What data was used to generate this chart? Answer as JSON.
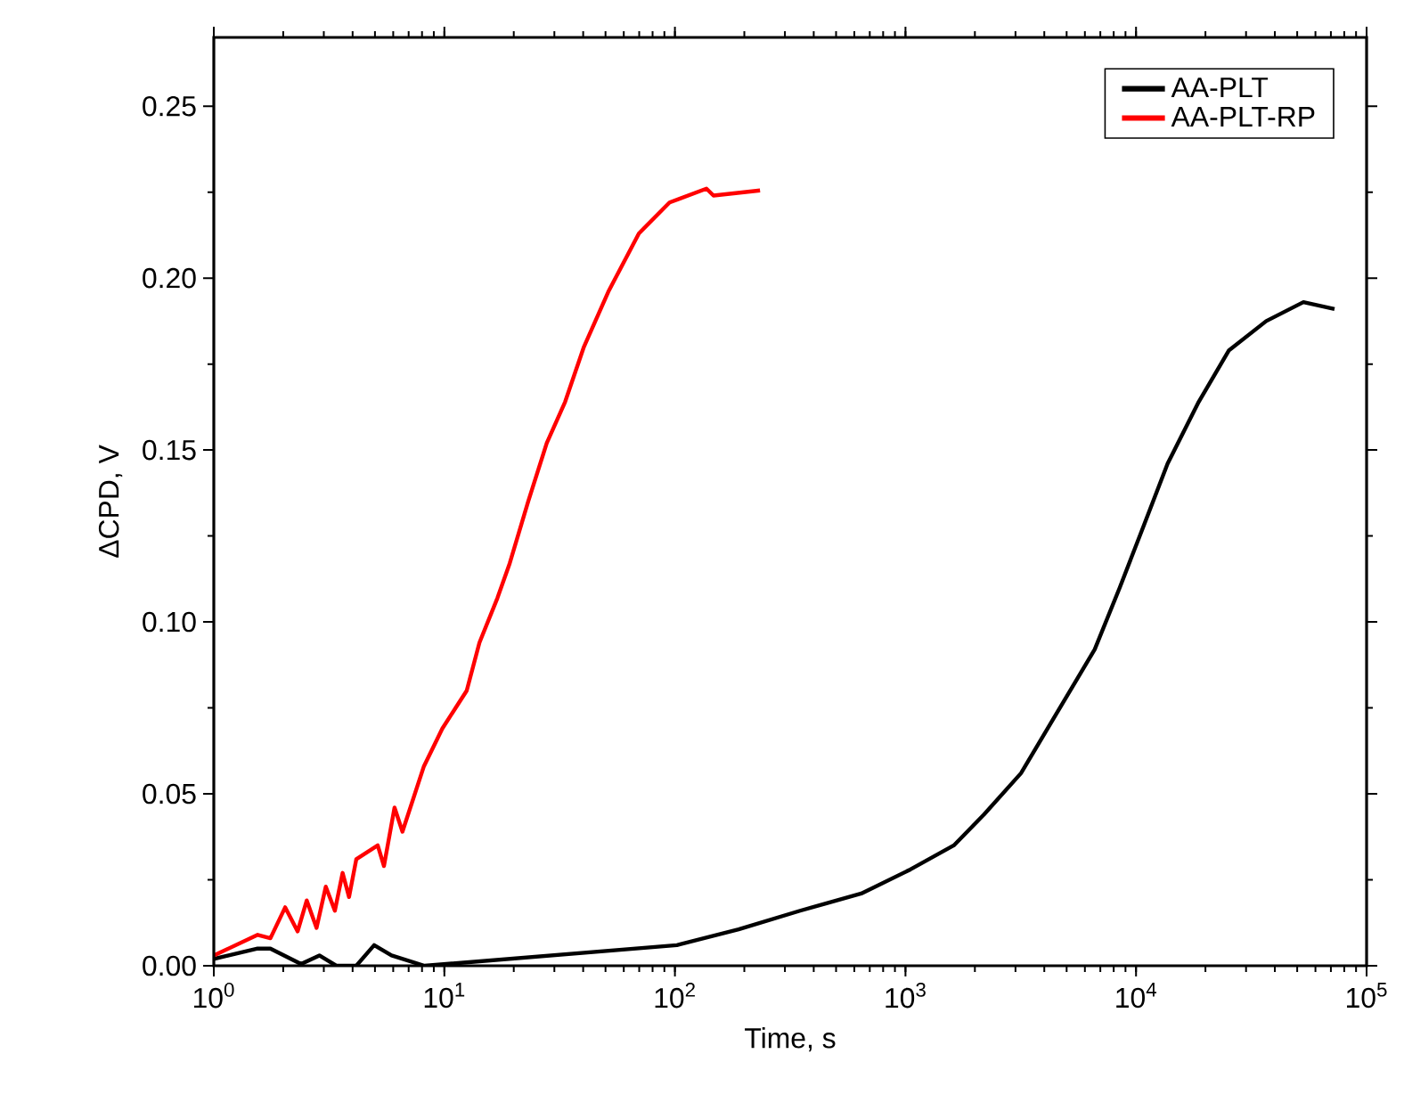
{
  "chart_data": {
    "type": "line",
    "xlabel": "Time, s",
    "ylabel": "ΔCPD, V",
    "log": "x",
    "legend": "top right",
    "xlim": [
      1,
      100000
    ],
    "ylim": [
      0,
      0.27
    ],
    "xticks": [
      {
        "value": 1,
        "label": "10$^{0}$"
      },
      {
        "value": 10,
        "label": "10$^{1}$"
      },
      {
        "value": 100,
        "label": "10$^{2}$"
      },
      {
        "value": 1000,
        "label": "10$^{3}$"
      },
      {
        "value": 10000,
        "label": "10$^{4}$"
      },
      {
        "value": 100000,
        "label": "10$^{5}$"
      }
    ],
    "yticks": [
      {
        "value": 0,
        "label": "0.00"
      },
      {
        "value": 0.05,
        "label": "0.05"
      },
      {
        "value": 0.1,
        "label": "0.10"
      },
      {
        "value": 0.15,
        "label": "0.15"
      },
      {
        "value": 0.2,
        "label": "0.20"
      },
      {
        "value": 0.25,
        "label": "0.25"
      }
    ],
    "series": [
      {
        "name": "AA-PLT",
        "color": "#000000",
        "x": [
          1.0,
          1.55,
          1.76,
          2.39,
          2.87,
          3.4,
          4.15,
          4.96,
          5.9,
          8.2,
          102,
          189,
          349,
          643,
          1050,
          1620,
          2190,
          3170,
          4580,
          6620,
          8500,
          10800,
          13700,
          18700,
          25300,
          36700,
          53200,
          72600
        ],
        "values": [
          0.002,
          0.005,
          0.005,
          0.0005,
          0.003,
          0.0,
          0.0,
          0.006,
          0.003,
          0.0,
          0.006,
          0.0106,
          0.016,
          0.021,
          0.028,
          0.035,
          0.044,
          0.056,
          0.074,
          0.092,
          0.11,
          0.128,
          0.146,
          0.164,
          0.179,
          0.1875,
          0.193,
          0.191
        ]
      },
      {
        "name": "AA-PLT-RP",
        "color": "#ff0000",
        "x": [
          1.0,
          1.55,
          1.76,
          2.04,
          2.31,
          2.53,
          2.79,
          3.06,
          3.35,
          3.62,
          3.86,
          4.15,
          5.14,
          5.47,
          6.08,
          6.58,
          8.15,
          9.8,
          12.5,
          14.2,
          17.0,
          19.2,
          23.1,
          27.8,
          33.4,
          40.3,
          51.4,
          69.8,
          94.8,
          137,
          147,
          234
        ],
        "values": [
          0.003,
          0.009,
          0.008,
          0.017,
          0.01,
          0.019,
          0.011,
          0.023,
          0.016,
          0.027,
          0.02,
          0.031,
          0.035,
          0.029,
          0.046,
          0.039,
          0.058,
          0.069,
          0.08,
          0.094,
          0.107,
          0.117,
          0.135,
          0.152,
          0.164,
          0.18,
          0.196,
          0.213,
          0.222,
          0.226,
          0.224,
          0.2255
        ]
      }
    ]
  }
}
